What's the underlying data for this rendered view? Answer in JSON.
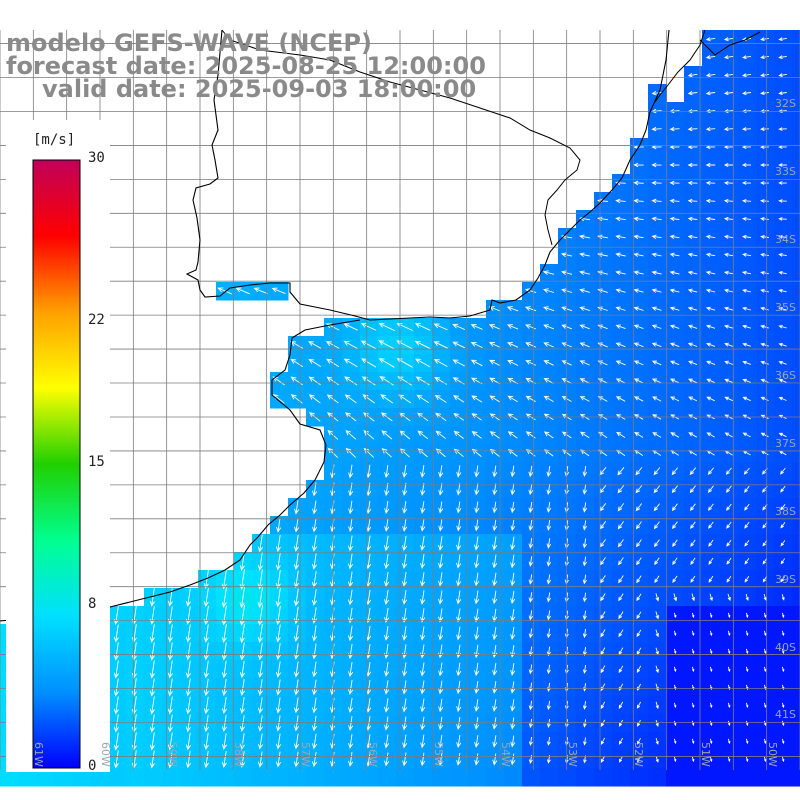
{
  "title": {
    "line1": "modelo GEFS-WAVE (NCEP)",
    "line2": "forecast date: 2025-08-25 12:00:00",
    "line3": "valid date: 2025-09-03 18:00:00"
  },
  "colorbar": {
    "unit": "[m/s]",
    "ticks": [
      "30",
      "22",
      "15",
      "8",
      "0"
    ],
    "tick_values": [
      30,
      22,
      15,
      8,
      0
    ],
    "range": [
      0,
      30
    ],
    "stops": [
      "#0000ff",
      "#0090ff",
      "#00e0ff",
      "#00ff90",
      "#20d000",
      "#ffff00",
      "#ffa000",
      "#ff0000",
      "#c0005a"
    ]
  },
  "map": {
    "region": "SW South Atlantic, Rio de la Plata to southern Brazil",
    "lon_range": [
      -61.5,
      -49.5
    ],
    "lat_range": [
      -41.7,
      -30.8
    ],
    "lat_labels": [
      "32S",
      "33S",
      "34S",
      "35S",
      "36S",
      "37S",
      "38S",
      "39S",
      "40S",
      "41S"
    ],
    "lat_values": [
      -32,
      -33,
      -34,
      -35,
      -36,
      -37,
      -38,
      -39,
      -40,
      -41
    ],
    "lon_labels": [
      "61W",
      "60W",
      "59W",
      "58W",
      "57W",
      "56W",
      "55W",
      "54W",
      "53W",
      "52W",
      "51W",
      "50W"
    ],
    "lon_values": [
      -61,
      -60,
      -59,
      -58,
      -57,
      -56,
      -55,
      -54,
      -53,
      -52,
      -51,
      -50
    ],
    "wind_direction": "onshore easterly/northeasterly near coast, southward flow offshore",
    "colors": {
      "land": "#ffffff",
      "coast": "#000000",
      "grid": "#7d7d7d",
      "arrow": "#ffffff"
    }
  }
}
